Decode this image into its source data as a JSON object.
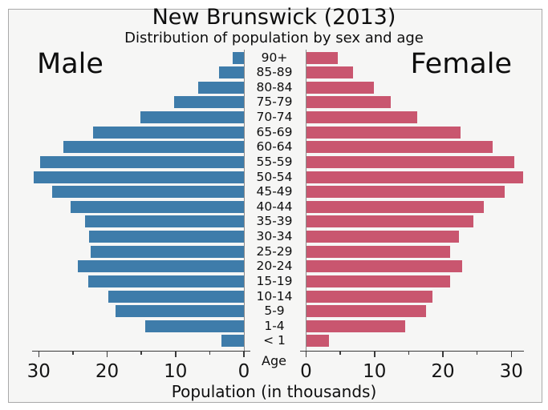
{
  "header": {
    "title": "New Brunswick (2013)",
    "subtitle": "Distribution of population by sex and age"
  },
  "labels": {
    "male": "Male",
    "female": "Female",
    "age_axis": "Age",
    "xlabel": "Population (in thousands)"
  },
  "colors": {
    "male_bar": "#3e7caa",
    "female_bar": "#c9566f",
    "background": "#f6f6f5",
    "frame_border": "#a9a9a9",
    "axis": "#3a3a3a",
    "text": "#0e0e0e"
  },
  "chart_data": {
    "type": "bar",
    "layout": "population-pyramid",
    "title": "New Brunswick (2013)",
    "subtitle": "Distribution of population by sex and age",
    "xlabel": "Population (in thousands)",
    "age_axis_label": "Age",
    "units": "thousands of people",
    "categories": [
      "90+",
      "85-89",
      "80-84",
      "75-79",
      "70-74",
      "65-69",
      "60-64",
      "55-59",
      "50-54",
      "45-49",
      "40-44",
      "35-39",
      "30-34",
      "25-29",
      "20-24",
      "15-19",
      "10-14",
      "5-9",
      "1-4",
      "< 1"
    ],
    "series": [
      {
        "name": "Male",
        "side": "left",
        "color": "#3e7caa",
        "values": [
          1.6,
          3.6,
          6.7,
          10.2,
          15.1,
          22.1,
          26.4,
          29.8,
          30.7,
          28.0,
          25.3,
          23.2,
          22.6,
          22.4,
          24.3,
          22.7,
          19.8,
          18.8,
          14.4,
          3.3
        ]
      },
      {
        "name": "Female",
        "side": "right",
        "color": "#c9566f",
        "values": [
          4.6,
          6.9,
          9.9,
          12.4,
          16.3,
          22.6,
          27.3,
          30.4,
          31.7,
          29.0,
          26.0,
          24.4,
          22.3,
          21.1,
          22.8,
          21.0,
          18.5,
          17.5,
          14.5,
          3.4
        ]
      }
    ],
    "x_ticks": [
      0,
      10,
      20,
      30
    ],
    "x_minor_ticks": [
      5,
      15,
      25
    ],
    "xlim_each_side": [
      0,
      32
    ],
    "grid": false,
    "legend_position": "in-plot text labels, Male top-left / Female top-right"
  }
}
